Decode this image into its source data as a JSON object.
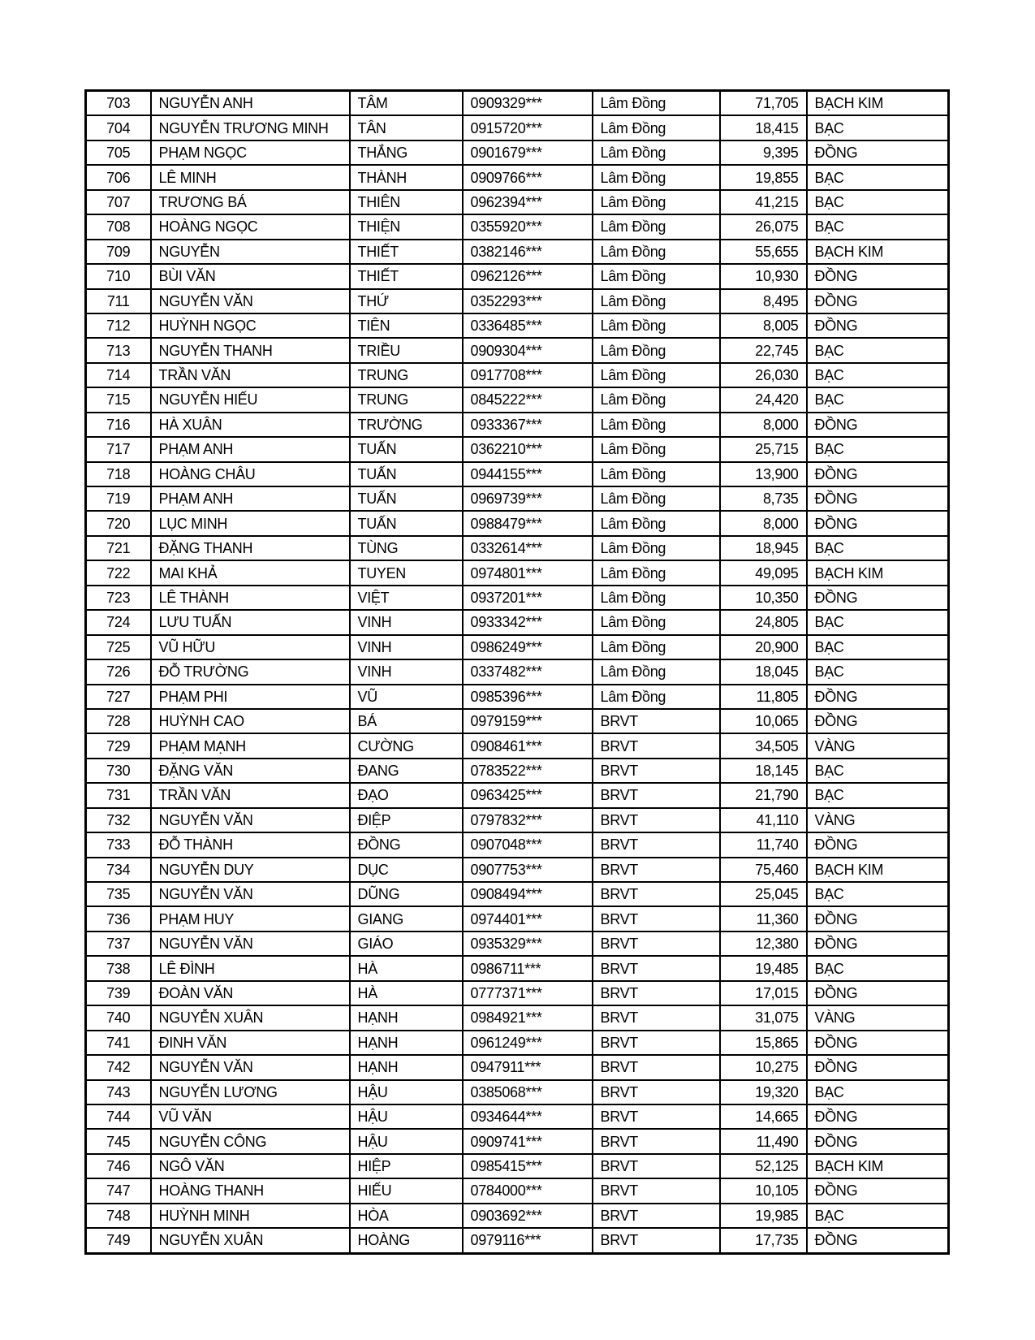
{
  "page": {
    "background_color": "#ffffff",
    "text_color": "#000000",
    "table_border_color": "#000000"
  },
  "table": {
    "column_keys": [
      "index",
      "last_name",
      "first_name",
      "phone",
      "province",
      "points",
      "tier"
    ],
    "rows": [
      [
        "703",
        "NGUYỄN ANH",
        "TÂM",
        "0909329***",
        "Lâm Đồng",
        "71,705",
        "BẠCH KIM"
      ],
      [
        "704",
        "NGUYỄN TRƯƠNG MINH",
        "TÂN",
        "0915720***",
        "Lâm Đồng",
        "18,415",
        "BẠC"
      ],
      [
        "705",
        "PHẠM NGỌC",
        "THẮNG",
        "0901679***",
        "Lâm Đồng",
        "9,395",
        "ĐỒNG"
      ],
      [
        "706",
        "LÊ MINH",
        "THÀNH",
        "0909766***",
        "Lâm Đồng",
        "19,855",
        "BẠC"
      ],
      [
        "707",
        "TRƯƠNG BÁ",
        "THIÊN",
        "0962394***",
        "Lâm Đồng",
        "41,215",
        "BẠC"
      ],
      [
        "708",
        "HOÀNG NGỌC",
        "THIỆN",
        "0355920***",
        "Lâm Đồng",
        "26,075",
        "BẠC"
      ],
      [
        "709",
        "NGUYỄN",
        "THIẾT",
        "0382146***",
        "Lâm Đồng",
        "55,655",
        "BẠCH KIM"
      ],
      [
        "710",
        "BÙI VĂN",
        "THIẾT",
        "0962126***",
        "Lâm Đồng",
        "10,930",
        "ĐỒNG"
      ],
      [
        "711",
        "NGUYỄN VĂN",
        "THỨ",
        "0352293***",
        "Lâm Đồng",
        "8,495",
        "ĐỒNG"
      ],
      [
        "712",
        "HUỲNH NGỌC",
        "TIÊN",
        "0336485***",
        "Lâm Đồng",
        "8,005",
        "ĐỒNG"
      ],
      [
        "713",
        "NGUYỄN THANH",
        "TRIỀU",
        "0909304***",
        "Lâm Đồng",
        "22,745",
        "BẠC"
      ],
      [
        "714",
        "TRẦN VĂN",
        "TRUNG",
        "0917708***",
        "Lâm Đồng",
        "26,030",
        "BẠC"
      ],
      [
        "715",
        "NGUYỄN HIẾU",
        "TRUNG",
        "0845222***",
        "Lâm Đồng",
        "24,420",
        "BẠC"
      ],
      [
        "716",
        "HÀ XUÂN",
        "TRƯỜNG",
        "0933367***",
        "Lâm Đồng",
        "8,000",
        "ĐỒNG"
      ],
      [
        "717",
        "PHẠM ANH",
        "TUẤN",
        "0362210***",
        "Lâm Đồng",
        "25,715",
        "BẠC"
      ],
      [
        "718",
        "HOÀNG CHÂU",
        "TUẤN",
        "0944155***",
        "Lâm Đồng",
        "13,900",
        "ĐỒNG"
      ],
      [
        "719",
        "PHẠM ANH",
        "TUẤN",
        "0969739***",
        "Lâm Đồng",
        "8,735",
        "ĐỒNG"
      ],
      [
        "720",
        "LỤC MINH",
        "TUẤN",
        "0988479***",
        "Lâm Đồng",
        "8,000",
        "ĐỒNG"
      ],
      [
        "721",
        "ĐẶNG THANH",
        "TÙNG",
        "0332614***",
        "Lâm Đồng",
        "18,945",
        "BẠC"
      ],
      [
        "722",
        "MAI KHẢ",
        "TUYEN",
        "0974801***",
        "Lâm Đồng",
        "49,095",
        "BẠCH KIM"
      ],
      [
        "723",
        "LÊ THÀNH",
        "VIỆT",
        "0937201***",
        "Lâm Đồng",
        "10,350",
        "ĐỒNG"
      ],
      [
        "724",
        "LƯU TUẤN",
        "VINH",
        "0933342***",
        "Lâm Đồng",
        "24,805",
        "BẠC"
      ],
      [
        "725",
        "VŨ HỮU",
        "VINH",
        "0986249***",
        "Lâm Đồng",
        "20,900",
        "BẠC"
      ],
      [
        "726",
        "ĐỖ TRƯỜNG",
        "VINH",
        "0337482***",
        "Lâm Đồng",
        "18,045",
        "BẠC"
      ],
      [
        "727",
        "PHẠM PHI",
        "VŨ",
        "0985396***",
        "Lâm Đồng",
        "11,805",
        "ĐỒNG"
      ],
      [
        "728",
        "HUỲNH CAO",
        "BÁ",
        "0979159***",
        "BRVT",
        "10,065",
        "ĐỒNG"
      ],
      [
        "729",
        "PHẠM MẠNH",
        "CƯỜNG",
        "0908461***",
        "BRVT",
        "34,505",
        "VÀNG"
      ],
      [
        "730",
        "ĐẶNG VĂN",
        "ĐANG",
        "0783522***",
        "BRVT",
        "18,145",
        "BẠC"
      ],
      [
        "731",
        "TRẦN VĂN",
        "ĐẠO",
        "0963425***",
        "BRVT",
        "21,790",
        "BẠC"
      ],
      [
        "732",
        "NGUYỄN VĂN",
        "ĐIỆP",
        "0797832***",
        "BRVT",
        "41,110",
        "VÀNG"
      ],
      [
        "733",
        "ĐỖ THÀNH",
        "ĐỒNG",
        "0907048***",
        "BRVT",
        "11,740",
        "ĐỒNG"
      ],
      [
        "734",
        "NGUYỄN DUY",
        "DỤC",
        "0907753***",
        "BRVT",
        "75,460",
        "BẠCH KIM"
      ],
      [
        "735",
        "NGUYỄN VĂN",
        "DŨNG",
        "0908494***",
        "BRVT",
        "25,045",
        "BẠC"
      ],
      [
        "736",
        "PHẠM HUY",
        "GIANG",
        "0974401***",
        "BRVT",
        "11,360",
        "ĐỒNG"
      ],
      [
        "737",
        "NGUYỄN VĂN",
        "GIÁO",
        "0935329***",
        "BRVT",
        "12,380",
        "ĐỒNG"
      ],
      [
        "738",
        "LÊ ĐÌNH",
        "HÀ",
        "0986711***",
        "BRVT",
        "19,485",
        "BẠC"
      ],
      [
        "739",
        "ĐOÀN VĂN",
        "HÀ",
        "0777371***",
        "BRVT",
        "17,015",
        "ĐỒNG"
      ],
      [
        "740",
        "NGUYỄN XUÂN",
        "HẠNH",
        "0984921***",
        "BRVT",
        "31,075",
        "VÀNG"
      ],
      [
        "741",
        "ĐINH VĂN",
        "HẠNH",
        "0961249***",
        "BRVT",
        "15,865",
        "ĐỒNG"
      ],
      [
        "742",
        "NGUYỄN VĂN",
        "HẠNH",
        "0947911***",
        "BRVT",
        "10,275",
        "ĐỒNG"
      ],
      [
        "743",
        "NGUYỄN LƯƠNG",
        "HẬU",
        "0385068***",
        "BRVT",
        "19,320",
        "BẠC"
      ],
      [
        "744",
        "VŨ VĂN",
        "HẬU",
        "0934644***",
        "BRVT",
        "14,665",
        "ĐỒNG"
      ],
      [
        "745",
        "NGUYỄN CÔNG",
        "HẬU",
        "0909741***",
        "BRVT",
        "11,490",
        "ĐỒNG"
      ],
      [
        "746",
        "NGÔ VĂN",
        "HIỆP",
        "0985415***",
        "BRVT",
        "52,125",
        "BẠCH KIM"
      ],
      [
        "747",
        "HOÀNG THANH",
        "HIẾU",
        "0784000***",
        "BRVT",
        "10,105",
        "ĐỒNG"
      ],
      [
        "748",
        "HUỲNH MINH",
        "HÒA",
        "0903692***",
        "BRVT",
        "19,985",
        "BẠC"
      ],
      [
        "749",
        "NGUYỄN XUÂN",
        "HOÀNG",
        "0979116***",
        "BRVT",
        "17,735",
        "ĐỒNG"
      ]
    ]
  }
}
